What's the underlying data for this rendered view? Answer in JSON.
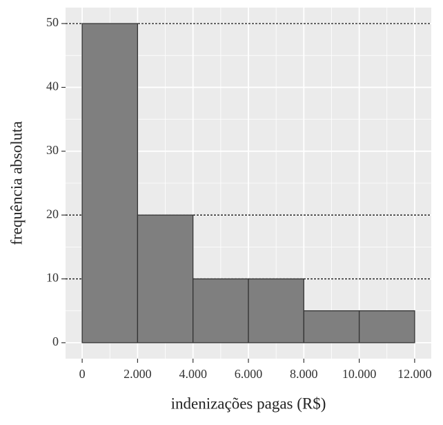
{
  "chart_data": {
    "type": "histogram",
    "xlabel": "indenizações pagas (R$)",
    "ylabel": "frequência absoluta",
    "bins": [
      0,
      2000,
      4000,
      6000,
      8000,
      10000,
      12000
    ],
    "values": [
      50,
      20,
      10,
      10,
      5,
      5
    ],
    "color": "#7f7f7f",
    "edgecolor": "#333333",
    "xlim": [
      -600,
      12600
    ],
    "ylim": [
      -2.5,
      52.5
    ],
    "xticks": [
      0,
      {
        "value": 2000,
        "label": "2.000"
      },
      {
        "value": 4000,
        "label": "4.000"
      },
      {
        "value": 6000,
        "label": "6.000"
      },
      {
        "value": 8000,
        "label": "8.000"
      },
      {
        "value": 10000,
        "label": "10.000"
      },
      {
        "value": 12000,
        "label": "12.000"
      }
    ],
    "yticks": [
      0,
      10,
      20,
      30,
      40,
      50
    ],
    "hlines": [
      10,
      20,
      50
    ],
    "grid": true
  }
}
